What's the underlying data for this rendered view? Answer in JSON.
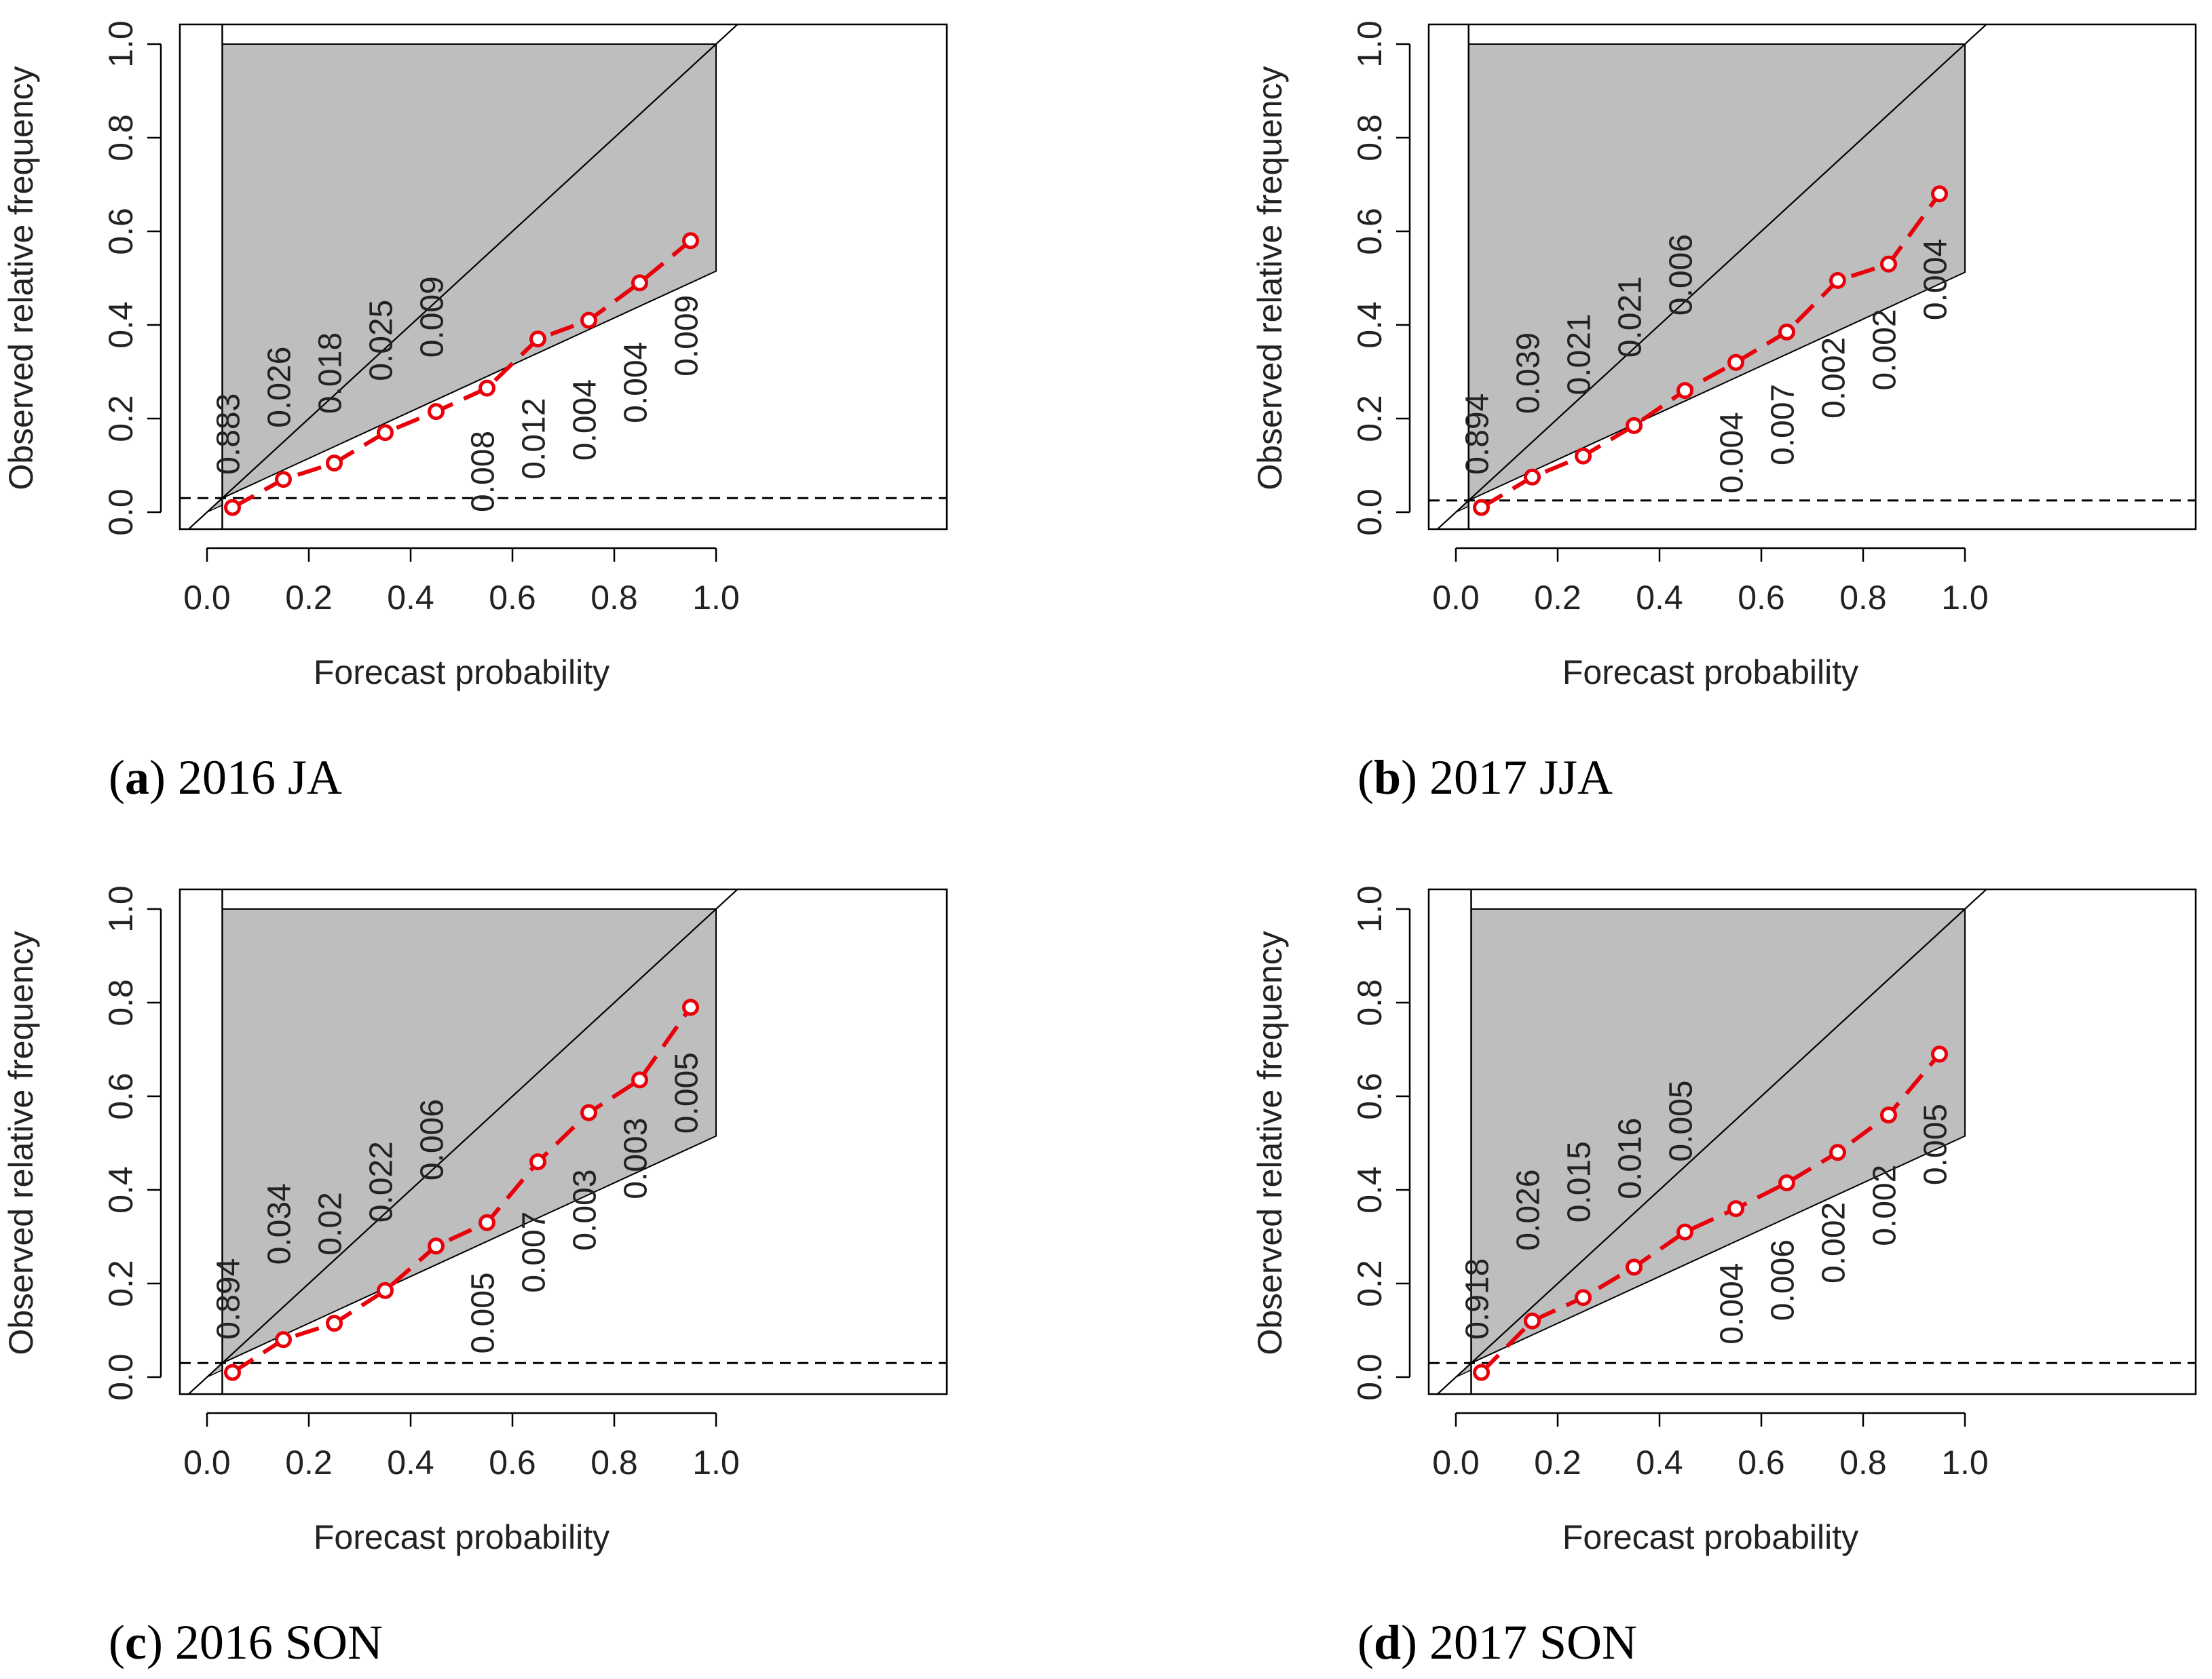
{
  "shared": {
    "xlabel": "Forecast probability",
    "ylabel": "Observed relative frequency",
    "x_ticks": [
      "0.0",
      "0.2",
      "0.4",
      "0.6",
      "0.8",
      "1.0"
    ],
    "y_ticks": [
      "0.0",
      "0.2",
      "0.4",
      "0.6",
      "0.8",
      "1.0"
    ],
    "colors": {
      "reliability_line": "#e8000b",
      "skill_region": "#bebebe",
      "axes": "#000000"
    }
  },
  "chart_data": [
    {
      "type": "line",
      "panel_letter": "a",
      "title": "2016 JA",
      "xlabel": "Forecast probability",
      "ylabel": "Observed relative frequency",
      "xlim": [
        0,
        1
      ],
      "ylim": [
        0,
        1
      ],
      "climatology": 0.03,
      "x": [
        0.05,
        0.15,
        0.25,
        0.35,
        0.45,
        0.55,
        0.65,
        0.75,
        0.85,
        0.95
      ],
      "observed": [
        0.01,
        0.07,
        0.105,
        0.17,
        0.215,
        0.265,
        0.37,
        0.41,
        0.49,
        0.58
      ],
      "freq_labels": [
        "0.883",
        "0.026",
        "0.018",
        "0.025",
        "0.009",
        "0.008",
        "0.012",
        "0.004",
        "0.004",
        "0.009"
      ],
      "label_y": [
        0.08,
        0.18,
        0.21,
        0.28,
        0.33,
        0.0,
        0.07,
        0.11,
        0.19,
        0.29
      ]
    },
    {
      "type": "line",
      "panel_letter": "b",
      "title": "2017 JJA",
      "xlabel": "Forecast probability",
      "ylabel": "Observed relative frequency",
      "xlim": [
        0,
        1
      ],
      "ylim": [
        0,
        1
      ],
      "climatology": 0.025,
      "x": [
        0.05,
        0.15,
        0.25,
        0.35,
        0.45,
        0.55,
        0.65,
        0.75,
        0.85,
        0.95
      ],
      "observed": [
        0.01,
        0.075,
        0.12,
        0.185,
        0.26,
        0.32,
        0.385,
        0.495,
        0.53,
        0.68
      ],
      "freq_labels": [
        "0.894",
        "0.039",
        "0.021",
        "0.021",
        "0.006",
        "0.004",
        "0.007",
        "0.002",
        "0.002",
        "0.004"
      ],
      "label_y": [
        0.08,
        0.21,
        0.25,
        0.33,
        0.42,
        0.04,
        0.1,
        0.2,
        0.26,
        0.41
      ]
    },
    {
      "type": "line",
      "panel_letter": "c",
      "title": "2016 SON",
      "xlabel": "Forecast probability",
      "ylabel": "Observed relative frequency",
      "xlim": [
        0,
        1
      ],
      "ylim": [
        0,
        1
      ],
      "climatology": 0.03,
      "x": [
        0.05,
        0.15,
        0.25,
        0.35,
        0.45,
        0.55,
        0.65,
        0.75,
        0.85,
        0.95
      ],
      "observed": [
        0.01,
        0.08,
        0.115,
        0.185,
        0.28,
        0.33,
        0.46,
        0.565,
        0.635,
        0.79
      ],
      "freq_labels": [
        "0.894",
        "0.034",
        "0.02",
        "0.022",
        "0.006",
        "0.005",
        "0.007",
        "0.003",
        "0.003",
        "0.005"
      ],
      "label_y": [
        0.08,
        0.24,
        0.26,
        0.33,
        0.42,
        0.05,
        0.18,
        0.27,
        0.38,
        0.52
      ]
    },
    {
      "type": "line",
      "panel_letter": "d",
      "title": "2017 SON",
      "xlabel": "Forecast probability",
      "ylabel": "Observed relative frequency",
      "xlim": [
        0,
        1
      ],
      "ylim": [
        0,
        1
      ],
      "climatology": 0.03,
      "x": [
        0.05,
        0.15,
        0.25,
        0.35,
        0.45,
        0.55,
        0.65,
        0.75,
        0.85,
        0.95
      ],
      "observed": [
        0.01,
        0.12,
        0.17,
        0.235,
        0.31,
        0.36,
        0.415,
        0.48,
        0.56,
        0.69
      ],
      "freq_labels": [
        "0.918",
        "0.026",
        "0.015",
        "0.016",
        "0.005",
        "0.004",
        "0.006",
        "0.002",
        "0.002",
        "0.005"
      ],
      "label_y": [
        0.08,
        0.27,
        0.33,
        0.38,
        0.46,
        0.07,
        0.12,
        0.2,
        0.28,
        0.41
      ]
    }
  ]
}
